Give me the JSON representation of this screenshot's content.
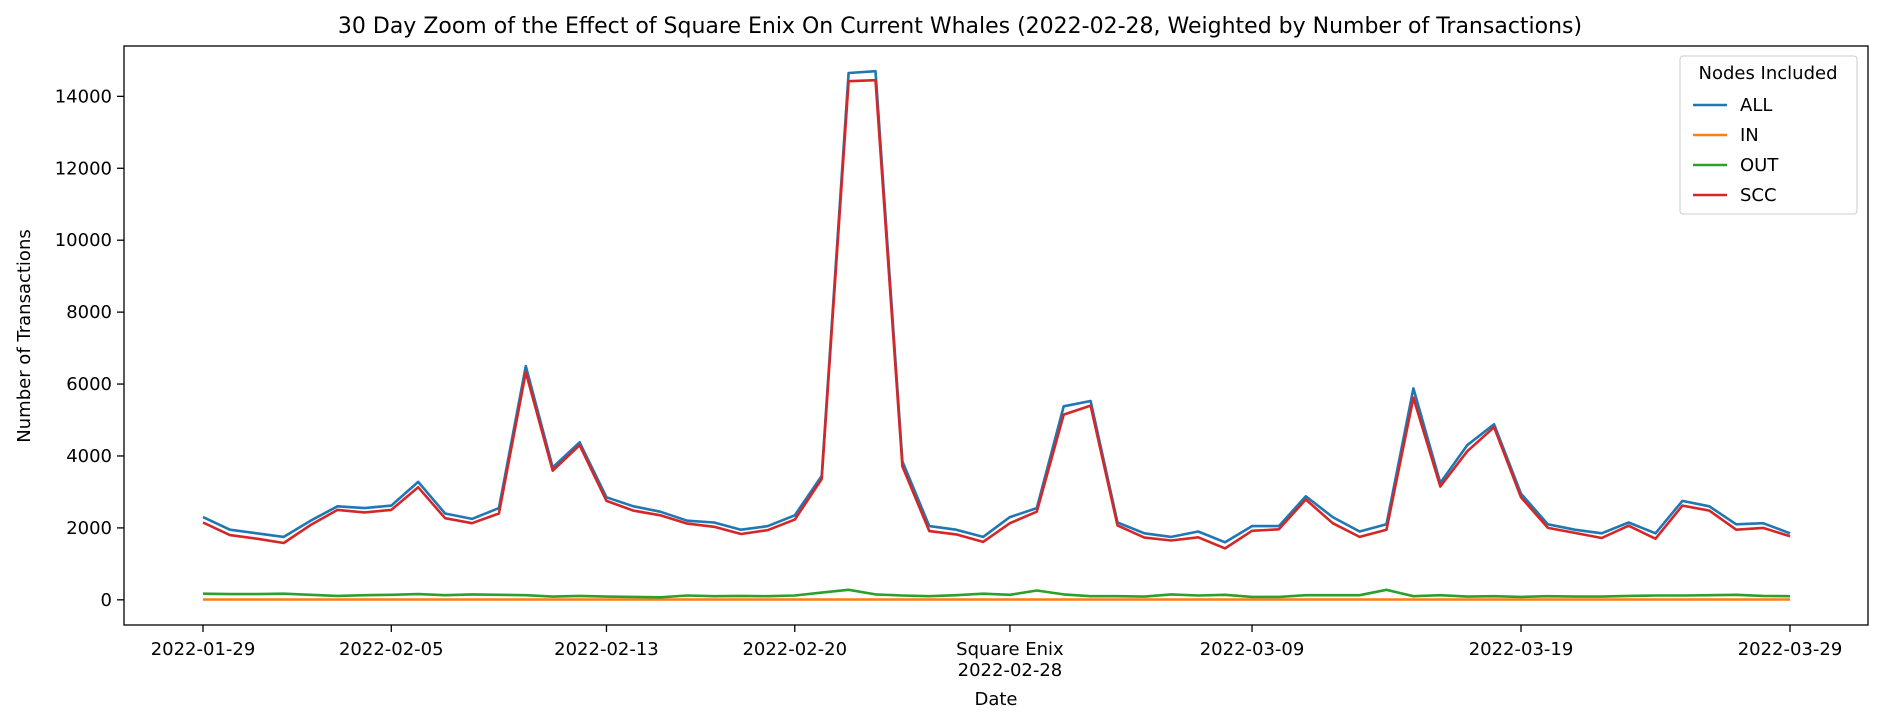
{
  "chart_data": {
    "type": "line",
    "title": "30 Day Zoom of the Effect of Square Enix On Current Whales (2022-02-28, Weighted by Number of Transactions)",
    "xlabel": "Date",
    "ylabel": "Number of Transactions",
    "x": [
      "2022-01-29",
      "2022-01-30",
      "2022-01-31",
      "2022-02-01",
      "2022-02-02",
      "2022-02-03",
      "2022-02-04",
      "2022-02-05",
      "2022-02-06",
      "2022-02-07",
      "2022-02-08",
      "2022-02-09",
      "2022-02-10",
      "2022-02-11",
      "2022-02-12",
      "2022-02-13",
      "2022-02-14",
      "2022-02-15",
      "2022-02-16",
      "2022-02-17",
      "2022-02-18",
      "2022-02-19",
      "2022-02-20",
      "2022-02-21",
      "2022-02-22",
      "2022-02-23",
      "2022-02-24",
      "2022-02-25",
      "2022-02-26",
      "2022-02-27",
      "2022-02-28",
      "2022-03-01",
      "2022-03-02",
      "2022-03-03",
      "2022-03-04",
      "2022-03-05",
      "2022-03-06",
      "2022-03-07",
      "2022-03-08",
      "2022-03-09",
      "2022-03-10",
      "2022-03-11",
      "2022-03-12",
      "2022-03-13",
      "2022-03-14",
      "2022-03-15",
      "2022-03-16",
      "2022-03-17",
      "2022-03-18",
      "2022-03-19",
      "2022-03-20",
      "2022-03-21",
      "2022-03-22",
      "2022-03-23",
      "2022-03-24",
      "2022-03-25",
      "2022-03-26",
      "2022-03-27",
      "2022-03-28",
      "2022-03-29"
    ],
    "series": [
      {
        "name": "ALL",
        "color": "#1f77b4",
        "values": [
          2300,
          1950,
          1850,
          1750,
          2200,
          2600,
          2550,
          2620,
          3280,
          2400,
          2250,
          2550,
          6500,
          3680,
          4380,
          2850,
          2600,
          2450,
          2200,
          2150,
          1950,
          2050,
          2350,
          3450,
          14650,
          14700,
          3850,
          2050,
          1950,
          1750,
          2300,
          2550,
          5380,
          5530,
          2150,
          1850,
          1750,
          1900,
          1600,
          2050,
          2050,
          2880,
          2300,
          1900,
          2100,
          5880,
          3250,
          4300,
          4880,
          2950,
          2100,
          1950,
          1850,
          2150,
          1850,
          2750,
          2600,
          2100,
          2130,
          1850
        ]
      },
      {
        "name": "IN",
        "color": "#ff7f0e",
        "values": [
          10,
          10,
          10,
          10,
          10,
          10,
          10,
          10,
          10,
          10,
          10,
          10,
          10,
          10,
          10,
          10,
          10,
          10,
          10,
          10,
          10,
          10,
          10,
          10,
          10,
          10,
          10,
          10,
          10,
          10,
          10,
          10,
          10,
          10,
          10,
          10,
          10,
          10,
          10,
          10,
          10,
          10,
          10,
          10,
          10,
          10,
          10,
          10,
          10,
          10,
          10,
          10,
          10,
          10,
          10,
          10,
          10,
          10,
          10,
          10
        ]
      },
      {
        "name": "OUT",
        "color": "#2ca02c",
        "values": [
          170,
          160,
          160,
          170,
          140,
          110,
          130,
          140,
          160,
          130,
          150,
          140,
          130,
          90,
          110,
          90,
          80,
          70,
          120,
          100,
          110,
          100,
          120,
          200,
          280,
          150,
          120,
          100,
          130,
          170,
          140,
          260,
          150,
          100,
          100,
          90,
          150,
          120,
          140,
          80,
          80,
          130,
          130,
          130,
          280,
          100,
          130,
          90,
          100,
          80,
          100,
          90,
          90,
          110,
          120,
          120,
          130,
          140,
          110,
          100
        ]
      },
      {
        "name": "SCC",
        "color": "#d62728",
        "values": [
          2150,
          1800,
          1700,
          1580,
          2080,
          2500,
          2430,
          2500,
          3130,
          2270,
          2130,
          2400,
          6330,
          3590,
          4300,
          2750,
          2480,
          2350,
          2120,
          2030,
          1830,
          1940,
          2230,
          3360,
          14420,
          14450,
          3710,
          1910,
          1820,
          1610,
          2130,
          2450,
          5150,
          5400,
          2070,
          1730,
          1650,
          1740,
          1430,
          1920,
          1960,
          2790,
          2130,
          1750,
          1950,
          5620,
          3150,
          4130,
          4800,
          2850,
          2000,
          1860,
          1720,
          2060,
          1700,
          2620,
          2480,
          1950,
          2000,
          1770
        ]
      }
    ],
    "xticks": [
      {
        "label": "2022-01-29",
        "x": "2022-01-29"
      },
      {
        "label": "2022-02-05",
        "x": "2022-02-05"
      },
      {
        "label": "2022-02-13",
        "x": "2022-02-13"
      },
      {
        "label": "2022-02-20",
        "x": "2022-02-20"
      },
      {
        "label": "Square Enix\n2022-02-28",
        "x": "2022-02-28"
      },
      {
        "label": "2022-03-09",
        "x": "2022-03-09"
      },
      {
        "label": "2022-03-19",
        "x": "2022-03-19"
      },
      {
        "label": "2022-03-29",
        "x": "2022-03-29"
      }
    ],
    "yticks": [
      0,
      2000,
      4000,
      6000,
      8000,
      10000,
      12000,
      14000
    ],
    "ylim": [
      -700,
      15400
    ],
    "legend": {
      "title": "Nodes Included",
      "placement": "top-right"
    },
    "grid": false
  }
}
